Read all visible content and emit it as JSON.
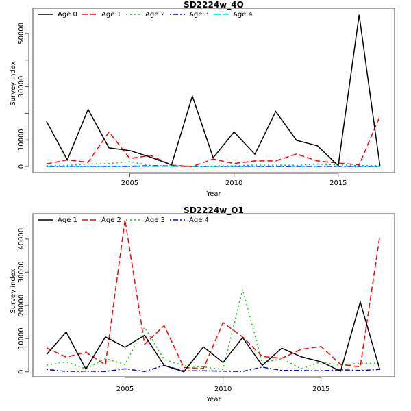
{
  "chart_data": [
    {
      "type": "line",
      "title": "SD2224w_4Q",
      "xlabel": "Year",
      "ylabel": "Survey index",
      "xlim": [
        2000.35,
        2017.7
      ],
      "ylim": [
        -2300,
        59500
      ],
      "xticks": [
        2005,
        2010,
        2015
      ],
      "xtick_labels": [
        "2005",
        "2010",
        "2015"
      ],
      "yticks": [
        0,
        10000,
        20000,
        30000,
        40000,
        50000
      ],
      "ytick_labels": [
        "0",
        "10000",
        "",
        "30000",
        "",
        "50000"
      ],
      "legend_position": "top",
      "x": [
        2001,
        2002,
        2003,
        2004,
        2005,
        2006,
        2007,
        2008,
        2009,
        2010,
        2011,
        2012,
        2013,
        2014,
        2015,
        2016,
        2017
      ],
      "series": [
        {
          "name": "Age 0",
          "color": "#000000",
          "dash": "solid",
          "values": [
            17000,
            2500,
            21500,
            7000,
            6000,
            3500,
            600,
            26500,
            3300,
            13000,
            4600,
            20700,
            9800,
            7800,
            300,
            57000,
            200
          ]
        },
        {
          "name": "Age 1",
          "color": "#ff0000",
          "dash": "dashed",
          "values": [
            1000,
            2500,
            1600,
            13000,
            3000,
            4200,
            500,
            0,
            2800,
            1100,
            2100,
            2100,
            4700,
            2100,
            1300,
            600,
            19000
          ]
        },
        {
          "name": "Age 2",
          "color": "#00cd00",
          "dash": "dotted",
          "values": [
            300,
            400,
            900,
            1100,
            1800,
            400,
            200,
            100,
            150,
            300,
            500,
            500,
            400,
            900,
            600,
            300,
            300
          ]
        },
        {
          "name": "Age 3",
          "color": "#0000ff",
          "dash": "dotdash",
          "values": [
            50,
            100,
            80,
            60,
            80,
            300,
            200,
            50,
            60,
            80,
            60,
            50,
            80,
            100,
            100,
            50,
            50
          ]
        },
        {
          "name": "Age 4",
          "color": "#00ffff",
          "dash": "longdash",
          "values": [
            10,
            20,
            10,
            10,
            20,
            30,
            20,
            10,
            10,
            20,
            10,
            10,
            10,
            20,
            20,
            10,
            10
          ]
        }
      ]
    },
    {
      "type": "line",
      "title": "SD2224w_Q1",
      "xlabel": "Year",
      "ylabel": "Survey index",
      "xlim": [
        2000.3,
        2018.75
      ],
      "ylim": [
        -1500,
        47600
      ],
      "xticks": [
        2005,
        2010,
        2015
      ],
      "xtick_labels": [
        "2005",
        "2010",
        "2015"
      ],
      "yticks": [
        0,
        10000,
        20000,
        30000,
        40000
      ],
      "ytick_labels": [
        "0",
        "10000",
        "20000",
        "30000",
        "40000"
      ],
      "legend_position": "top",
      "x": [
        2001,
        2002,
        2003,
        2004,
        2005,
        2006,
        2007,
        2008,
        2009,
        2010,
        2011,
        2012,
        2013,
        2014,
        2015,
        2016,
        2017,
        2018
      ],
      "series": [
        {
          "name": "Age 1",
          "color": "#000000",
          "dash": "solid",
          "values": [
            5200,
            12000,
            800,
            10500,
            7400,
            11000,
            1900,
            0,
            7500,
            2800,
            10300,
            1900,
            7100,
            4500,
            3000,
            200,
            21000,
            600
          ]
        },
        {
          "name": "Age 2",
          "color": "#ff0000",
          "dash": "dashed",
          "values": [
            7200,
            4400,
            5900,
            2100,
            45800,
            8300,
            13900,
            1300,
            1000,
            14800,
            10500,
            4600,
            4100,
            6800,
            7600,
            2200,
            1500,
            41000
          ]
        },
        {
          "name": "Age 3",
          "color": "#00cd00",
          "dash": "dotted",
          "values": [
            2000,
            3000,
            900,
            4000,
            2200,
            13400,
            3700,
            1800,
            1500,
            700,
            24800,
            2800,
            3900,
            900,
            3000,
            1900,
            2600,
            2500
          ]
        },
        {
          "name": "Age 4",
          "color": "#0000ff",
          "dash": "dotdash",
          "values": [
            700,
            100,
            200,
            100,
            900,
            100,
            1900,
            300,
            300,
            200,
            100,
            1400,
            400,
            400,
            300,
            600,
            400,
            700
          ]
        }
      ]
    }
  ]
}
